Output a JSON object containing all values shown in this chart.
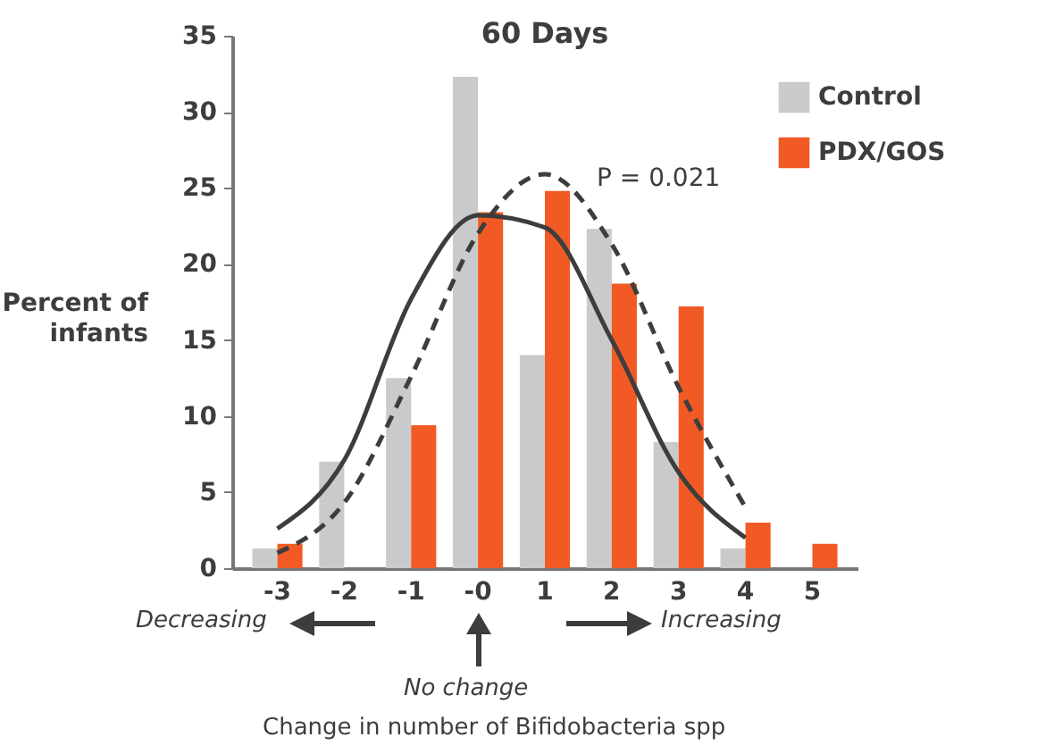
{
  "chart_data": {
    "type": "bar",
    "title": "60 Days",
    "ylabel": "Percent of infants",
    "categories": [
      "-3",
      "-2",
      "-1",
      "-0",
      "1",
      "2",
      "3",
      "4",
      "5"
    ],
    "series": [
      {
        "name": "Control",
        "color": "#c9cacc",
        "values": [
          1.3,
          7.0,
          12.5,
          32.3,
          14.0,
          22.3,
          8.3,
          1.3,
          null
        ]
      },
      {
        "name": "PDX/GOS",
        "color": "#f15a24",
        "values": [
          1.6,
          null,
          9.4,
          23.4,
          24.8,
          18.7,
          17.2,
          3.0,
          1.6
        ]
      },
      {
        "type": "line",
        "color": "#3d3d3d",
        "line_style": "solid",
        "values": [
          2.6,
          7.1,
          17.7,
          23.2,
          22.4,
          15.0,
          6.3,
          2.0,
          null
        ]
      },
      {
        "type": "line",
        "color": "#3d3d3d",
        "line_style": "dashed",
        "values": [
          1.0,
          4.3,
          12.6,
          22.0,
          25.9,
          21.3,
          11.9,
          4.0,
          null
        ]
      }
    ],
    "ylim": [
      0,
      35
    ],
    "yticks": [
      0,
      5,
      10,
      15,
      20,
      25,
      30,
      35
    ],
    "grid": false,
    "legend": "top right",
    "annotations": [
      "P = 0.021",
      "Decreasing",
      "Increasing",
      "No change",
      "Change in number of Bifidobacteria spp"
    ]
  }
}
